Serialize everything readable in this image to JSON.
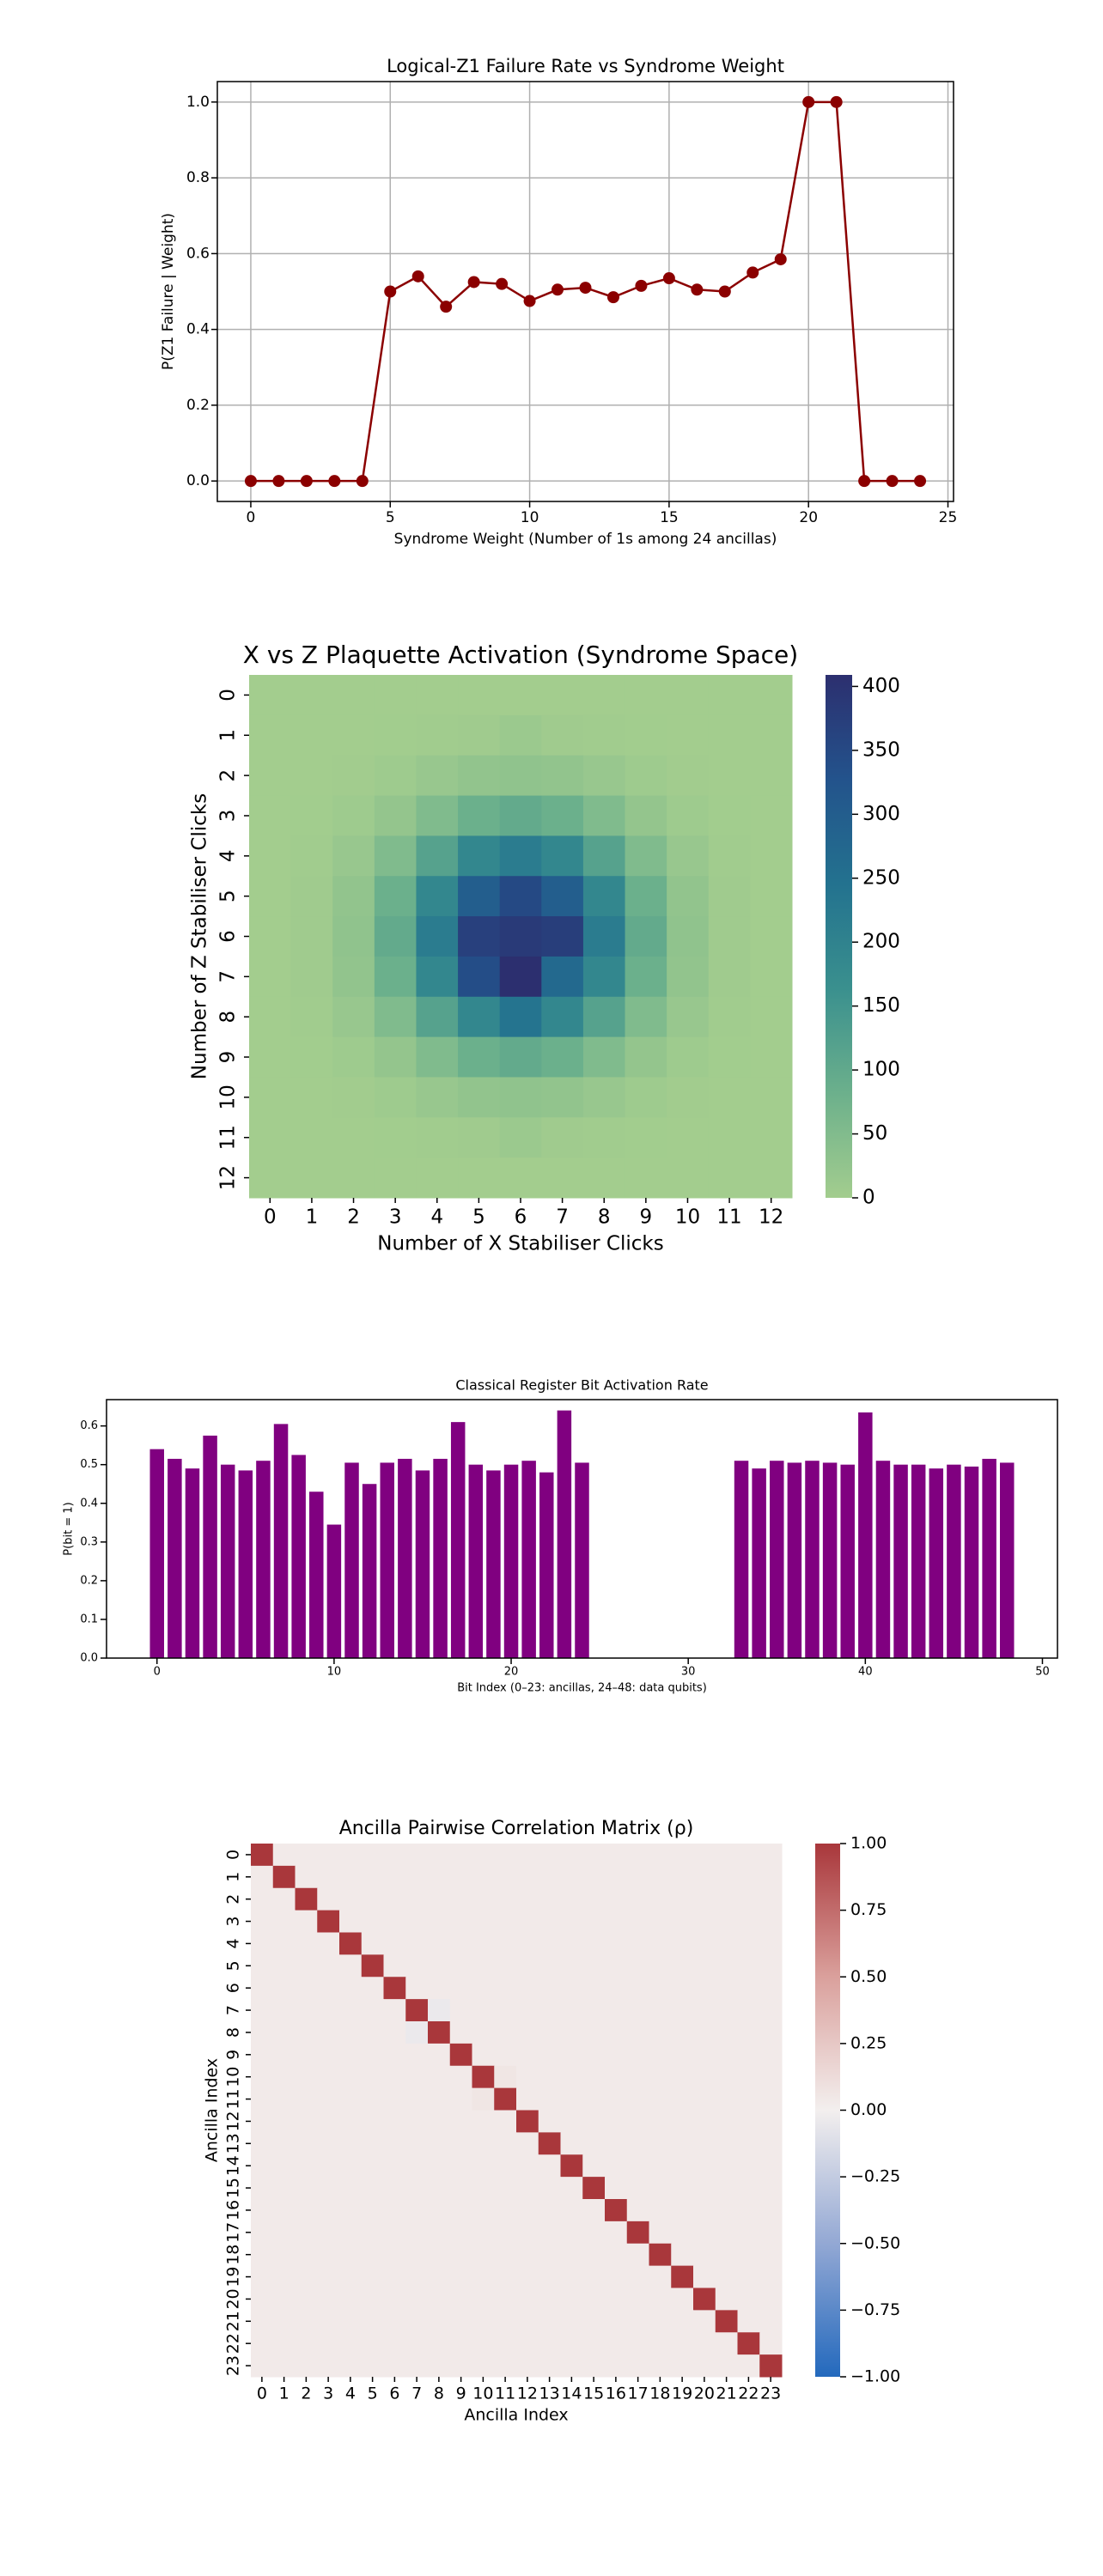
{
  "chart_data": [
    {
      "type": "line",
      "title": "Logical-Z1 Failure Rate vs Syndrome Weight",
      "x_label": "Syndrome Weight (Number of 1s among 24 ancillas)",
      "y_label": "P(Z1 Failure | Weight)",
      "x": [
        0,
        1,
        2,
        3,
        4,
        5,
        6,
        7,
        8,
        9,
        10,
        11,
        12,
        13,
        14,
        15,
        16,
        17,
        18,
        19,
        20,
        21,
        22,
        23,
        24
      ],
      "values": [
        0,
        0,
        0,
        0,
        0,
        0.5,
        0.54,
        0.46,
        0.525,
        0.52,
        0.475,
        0.505,
        0.51,
        0.485,
        0.515,
        0.535,
        0.505,
        0.5,
        0.55,
        0.585,
        1.0,
        1.0,
        0,
        0,
        0
      ],
      "color": "#8b0000",
      "xlim": [
        -1.2,
        25.2
      ],
      "xticks": [
        0,
        5,
        10,
        15,
        20,
        25
      ],
      "ylim": [
        -0.054,
        1.054
      ],
      "yticks": [
        {
          "value": 0,
          "label": "0.0"
        },
        {
          "value": 0.2,
          "label": "0.2"
        },
        {
          "value": 0.4,
          "label": "0.4"
        },
        {
          "value": 0.6,
          "label": "0.6"
        },
        {
          "value": 0.8,
          "label": "0.8"
        },
        {
          "value": 1,
          "label": "1.0"
        }
      ],
      "grid": true
    },
    {
      "type": "heatmap",
      "title": "X vs Z Plaquette Activation (Syndrome Space)",
      "x_label": "Number of X Stabiliser Clicks",
      "y_label": "Number of Z Stabiliser Clicks",
      "x_categories": [
        0,
        1,
        2,
        3,
        4,
        5,
        6,
        7,
        8,
        9,
        10,
        11,
        12
      ],
      "y_categories": [
        0,
        1,
        2,
        3,
        4,
        5,
        6,
        7,
        8,
        9,
        10,
        11,
        12
      ],
      "values": [
        [
          0,
          0,
          0,
          0,
          0,
          0,
          0,
          0,
          0,
          0,
          0,
          0,
          0
        ],
        [
          0,
          0,
          0,
          1,
          3,
          5,
          12,
          5,
          3,
          1,
          0,
          0,
          0
        ],
        [
          0,
          0,
          2,
          7,
          16,
          25,
          29,
          25,
          16,
          7,
          2,
          0,
          0
        ],
        [
          0,
          1,
          7,
          23,
          52,
          83,
          97,
          83,
          52,
          23,
          7,
          1,
          0
        ],
        [
          0,
          3,
          16,
          52,
          117,
          187,
          218,
          187,
          117,
          52,
          16,
          3,
          0
        ],
        [
          0,
          5,
          25,
          83,
          187,
          299,
          349,
          299,
          187,
          83,
          25,
          5,
          0
        ],
        [
          0,
          5,
          29,
          97,
          218,
          370,
          385,
          375,
          218,
          97,
          29,
          5,
          0
        ],
        [
          0,
          5,
          25,
          83,
          187,
          340,
          409,
          270,
          187,
          83,
          25,
          5,
          0
        ],
        [
          0,
          3,
          16,
          52,
          117,
          187,
          240,
          187,
          117,
          52,
          16,
          3,
          0
        ],
        [
          0,
          1,
          7,
          23,
          52,
          83,
          97,
          83,
          52,
          23,
          7,
          1,
          0
        ],
        [
          0,
          0,
          2,
          7,
          16,
          25,
          29,
          25,
          16,
          7,
          2,
          0,
          0
        ],
        [
          0,
          0,
          0,
          1,
          3,
          5,
          12,
          5,
          3,
          1,
          0,
          0,
          0
        ],
        [
          0,
          0,
          0,
          0,
          0,
          0,
          0,
          0,
          0,
          0,
          0,
          0,
          0
        ]
      ],
      "colormap": [
        "#a3cd8e",
        "#6cb08c",
        "#3a908e",
        "#23728f",
        "#23538c",
        "#2c2f6f"
      ],
      "clim": [
        0,
        409
      ],
      "cticks": [
        0,
        50,
        100,
        150,
        200,
        250,
        300,
        350,
        400
      ]
    },
    {
      "type": "bar",
      "title": "Classical Register Bit Activation Rate",
      "x_label": "Bit Index (0–23: ancillas, 24–48: data qubits)",
      "y_label": "P(bit = 1)",
      "x": [
        0,
        1,
        2,
        3,
        4,
        5,
        6,
        7,
        8,
        9,
        10,
        11,
        12,
        13,
        14,
        15,
        16,
        17,
        18,
        19,
        20,
        21,
        22,
        23,
        24,
        25,
        26,
        27,
        28,
        29,
        30,
        31,
        32,
        33,
        34,
        35,
        36,
        37,
        38,
        39,
        40,
        41,
        42,
        43,
        44,
        45,
        46,
        47,
        48
      ],
      "values": [
        0.54,
        0.515,
        0.49,
        0.575,
        0.5,
        0.485,
        0.51,
        0.605,
        0.525,
        0.43,
        0.345,
        0.505,
        0.45,
        0.505,
        0.515,
        0.485,
        0.515,
        0.61,
        0.5,
        0.485,
        0.5,
        0.51,
        0.48,
        0.64,
        0.505,
        0,
        0,
        0,
        0,
        0,
        0,
        0,
        0,
        0.51,
        0.49,
        0.51,
        0.505,
        0.51,
        0.505,
        0.5,
        0.635,
        0.51,
        0.5,
        0.5,
        0.49,
        0.5,
        0.495,
        0.515,
        0.505
      ],
      "color": "#800080",
      "xlim": [
        -2.85,
        50.85
      ],
      "xticks": [
        0,
        10,
        20,
        30,
        40,
        50
      ],
      "ylim": [
        0,
        0.668
      ],
      "yticks": [
        {
          "value": 0,
          "label": "0.0"
        },
        {
          "value": 0.1,
          "label": "0.1"
        },
        {
          "value": 0.2,
          "label": "0.2"
        },
        {
          "value": 0.3,
          "label": "0.3"
        },
        {
          "value": 0.4,
          "label": "0.4"
        },
        {
          "value": 0.5,
          "label": "0.5"
        },
        {
          "value": 0.6,
          "label": "0.6"
        }
      ],
      "grid": false
    },
    {
      "type": "heatmap",
      "title": "Ancilla Pairwise Correlation Matrix (ρ)",
      "x_label": "Ancilla Index",
      "y_label": "Ancilla Index",
      "x_categories": [
        0,
        1,
        2,
        3,
        4,
        5,
        6,
        7,
        8,
        9,
        10,
        11,
        12,
        13,
        14,
        15,
        16,
        17,
        18,
        19,
        20,
        21,
        22,
        23
      ],
      "y_categories": [
        0,
        1,
        2,
        3,
        4,
        5,
        6,
        7,
        8,
        9,
        10,
        11,
        12,
        13,
        14,
        15,
        16,
        17,
        18,
        19,
        20,
        21,
        22,
        23
      ],
      "values": [
        [
          1,
          0.03,
          0.03,
          0.03,
          0.03,
          0.03,
          0.03,
          0.03,
          0.03,
          0.03,
          0.03,
          0.03,
          0.03,
          0.03,
          0.03,
          0.03,
          0.03,
          0.03,
          0.03,
          0.03,
          0.03,
          0.03,
          0.03,
          0.03
        ],
        [
          0.03,
          1,
          0.03,
          0.03,
          0.03,
          0.03,
          0.03,
          0.03,
          0.03,
          0.03,
          0.03,
          0.03,
          0.03,
          0.03,
          0.03,
          0.03,
          0.03,
          0.03,
          0.03,
          0.03,
          0.03,
          0.03,
          0.03,
          0.03
        ],
        [
          0.03,
          0.03,
          1,
          0.03,
          0.03,
          0.03,
          0.03,
          0.03,
          0.03,
          0.03,
          0.03,
          0.03,
          0.03,
          0.03,
          0.03,
          0.03,
          0.03,
          0.03,
          0.03,
          0.03,
          0.03,
          0.03,
          0.03,
          0.03
        ],
        [
          0.03,
          0.03,
          0.03,
          1,
          0.03,
          0.03,
          0.03,
          0.03,
          0.03,
          0.03,
          0.03,
          0.03,
          0.03,
          0.03,
          0.03,
          0.03,
          0.03,
          0.03,
          0.03,
          0.03,
          0.03,
          0.03,
          0.03,
          0.03
        ],
        [
          0.03,
          0.03,
          0.03,
          0.03,
          1,
          0.03,
          0.03,
          0.03,
          0.03,
          0.03,
          0.03,
          0.03,
          0.03,
          0.03,
          0.03,
          0.03,
          0.03,
          0.03,
          0.03,
          0.03,
          0.03,
          0.03,
          0.03,
          0.03
        ],
        [
          0.03,
          0.03,
          0.03,
          0.03,
          0.03,
          1,
          0.03,
          0.03,
          0.03,
          0.03,
          0.03,
          0.03,
          0.03,
          0.03,
          0.03,
          0.03,
          0.03,
          0.03,
          0.03,
          0.03,
          0.03,
          0.03,
          0.03,
          0.03
        ],
        [
          0.03,
          0.03,
          0.03,
          0.03,
          0.03,
          0.03,
          1,
          0.03,
          0.03,
          0.03,
          0.03,
          0.03,
          0.03,
          0.03,
          0.03,
          0.03,
          0.03,
          0.03,
          0.03,
          0.03,
          0.03,
          0.03,
          0.03,
          0.03
        ],
        [
          0.03,
          0.03,
          0.03,
          0.03,
          0.03,
          0.03,
          0.03,
          1,
          -0.04,
          0.03,
          0.03,
          0.03,
          0.03,
          0.03,
          0.03,
          0.03,
          0.03,
          0.03,
          0.03,
          0.03,
          0.03,
          0.03,
          0.03,
          0.03
        ],
        [
          0.03,
          0.03,
          0.03,
          0.03,
          0.03,
          0.03,
          0.03,
          -0.04,
          1,
          0.03,
          0.03,
          0.03,
          0.03,
          0.03,
          0.03,
          0.03,
          0.03,
          0.03,
          0.03,
          0.03,
          0.03,
          0.03,
          0.03,
          0.03
        ],
        [
          0.03,
          0.03,
          0.03,
          0.03,
          0.03,
          0.03,
          0.03,
          0.03,
          0.03,
          1,
          0.03,
          0.03,
          0.03,
          0.03,
          0.03,
          0.03,
          0.03,
          0.03,
          0.03,
          0.03,
          0.03,
          0.03,
          0.03,
          0.03
        ],
        [
          0.03,
          0.03,
          0.03,
          0.03,
          0.03,
          0.03,
          0.03,
          0.03,
          0.03,
          0.03,
          1,
          0.06,
          0.03,
          0.03,
          0.03,
          0.03,
          0.03,
          0.03,
          0.03,
          0.03,
          0.03,
          0.03,
          0.03,
          0.03
        ],
        [
          0.03,
          0.03,
          0.03,
          0.03,
          0.03,
          0.03,
          0.03,
          0.03,
          0.03,
          0.03,
          0.06,
          1,
          0.03,
          0.03,
          0.03,
          0.03,
          0.03,
          0.03,
          0.03,
          0.03,
          0.03,
          0.03,
          0.03,
          0.03
        ],
        [
          0.03,
          0.03,
          0.03,
          0.03,
          0.03,
          0.03,
          0.03,
          0.03,
          0.03,
          0.03,
          0.03,
          0.03,
          1,
          0.03,
          0.03,
          0.03,
          0.03,
          0.03,
          0.03,
          0.03,
          0.03,
          0.03,
          0.03,
          0.03
        ],
        [
          0.03,
          0.03,
          0.03,
          0.03,
          0.03,
          0.03,
          0.03,
          0.03,
          0.03,
          0.03,
          0.03,
          0.03,
          0.03,
          1,
          0.03,
          0.03,
          0.03,
          0.03,
          0.03,
          0.03,
          0.03,
          0.03,
          0.03,
          0.03
        ],
        [
          0.03,
          0.03,
          0.03,
          0.03,
          0.03,
          0.03,
          0.03,
          0.03,
          0.03,
          0.03,
          0.03,
          0.03,
          0.03,
          0.03,
          1,
          0.03,
          0.03,
          0.03,
          0.03,
          0.03,
          0.03,
          0.03,
          0.03,
          0.03
        ],
        [
          0.03,
          0.03,
          0.03,
          0.03,
          0.03,
          0.03,
          0.03,
          0.03,
          0.03,
          0.03,
          0.03,
          0.03,
          0.03,
          0.03,
          0.03,
          1,
          0.03,
          0.03,
          0.03,
          0.03,
          0.03,
          0.03,
          0.03,
          0.03
        ],
        [
          0.03,
          0.03,
          0.03,
          0.03,
          0.03,
          0.03,
          0.03,
          0.03,
          0.03,
          0.03,
          0.03,
          0.03,
          0.03,
          0.03,
          0.03,
          0.03,
          1,
          0.03,
          0.03,
          0.03,
          0.03,
          0.03,
          0.03,
          0.03
        ],
        [
          0.03,
          0.03,
          0.03,
          0.03,
          0.03,
          0.03,
          0.03,
          0.03,
          0.03,
          0.03,
          0.03,
          0.03,
          0.03,
          0.03,
          0.03,
          0.03,
          0.03,
          1,
          0.03,
          0.03,
          0.03,
          0.03,
          0.03,
          0.03
        ],
        [
          0.03,
          0.03,
          0.03,
          0.03,
          0.03,
          0.03,
          0.03,
          0.03,
          0.03,
          0.03,
          0.03,
          0.03,
          0.03,
          0.03,
          0.03,
          0.03,
          0.03,
          0.03,
          1,
          0.03,
          0.03,
          0.03,
          0.03,
          0.03
        ],
        [
          0.03,
          0.03,
          0.03,
          0.03,
          0.03,
          0.03,
          0.03,
          0.03,
          0.03,
          0.03,
          0.03,
          0.03,
          0.03,
          0.03,
          0.03,
          0.03,
          0.03,
          0.03,
          0.03,
          1,
          0.03,
          0.03,
          0.03,
          0.03
        ],
        [
          0.03,
          0.03,
          0.03,
          0.03,
          0.03,
          0.03,
          0.03,
          0.03,
          0.03,
          0.03,
          0.03,
          0.03,
          0.03,
          0.03,
          0.03,
          0.03,
          0.03,
          0.03,
          0.03,
          0.03,
          1,
          0.03,
          0.03,
          0.03
        ],
        [
          0.03,
          0.03,
          0.03,
          0.03,
          0.03,
          0.03,
          0.03,
          0.03,
          0.03,
          0.03,
          0.03,
          0.03,
          0.03,
          0.03,
          0.03,
          0.03,
          0.03,
          0.03,
          0.03,
          0.03,
          0.03,
          1,
          0.03,
          0.03
        ],
        [
          0.03,
          0.03,
          0.03,
          0.03,
          0.03,
          0.03,
          0.03,
          0.03,
          0.03,
          0.03,
          0.03,
          0.03,
          0.03,
          0.03,
          0.03,
          0.03,
          0.03,
          0.03,
          0.03,
          0.03,
          0.03,
          0.03,
          1,
          0.03
        ],
        [
          0.03,
          0.03,
          0.03,
          0.03,
          0.03,
          0.03,
          0.03,
          0.03,
          0.03,
          0.03,
          0.03,
          0.03,
          0.03,
          0.03,
          0.03,
          0.03,
          0.03,
          0.03,
          0.03,
          0.03,
          0.03,
          0.03,
          0.03,
          1
        ]
      ],
      "colormap": [
        "#2369bd",
        "#93a8d4",
        "#f3efee",
        "#daa09c",
        "#a9373b"
      ],
      "clim": [
        -1,
        1
      ],
      "cticks": [
        {
          "value": -1,
          "label": "−1.00"
        },
        {
          "value": -0.75,
          "label": "−0.75"
        },
        {
          "value": -0.5,
          "label": "−0.50"
        },
        {
          "value": -0.25,
          "label": "−0.25"
        },
        {
          "value": 0,
          "label": "0.00"
        },
        {
          "value": 0.25,
          "label": "0.25"
        },
        {
          "value": 0.5,
          "label": "0.50"
        },
        {
          "value": 0.75,
          "label": "0.75"
        },
        {
          "value": 1,
          "label": "1.00"
        }
      ]
    }
  ]
}
